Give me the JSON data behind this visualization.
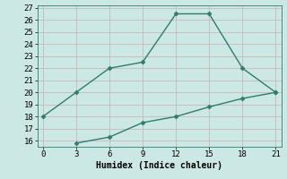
{
  "line1_x": [
    0,
    3,
    6,
    9,
    12,
    15,
    18,
    21
  ],
  "line1_y": [
    18,
    20,
    22,
    22.5,
    26.5,
    26.5,
    22,
    20
  ],
  "line2_x": [
    3,
    6,
    9,
    12,
    15,
    18,
    21
  ],
  "line2_y": [
    15.8,
    16.3,
    17.5,
    18,
    18.8,
    19.5,
    20
  ],
  "line_color": "#2e7d6e",
  "bg_color": "#cce8e4",
  "grid_color": "#c8b8b8",
  "xlabel": "Humidex (Indice chaleur)",
  "xlim": [
    -0.5,
    21.5
  ],
  "ylim": [
    15.5,
    27.2
  ],
  "xticks": [
    0,
    3,
    6,
    9,
    12,
    15,
    18,
    21
  ],
  "yticks": [
    16,
    17,
    18,
    19,
    20,
    21,
    22,
    23,
    24,
    25,
    26,
    27
  ],
  "marker": "D",
  "marker_size": 2.5,
  "line_width": 1.0,
  "xlabel_fontsize": 7,
  "tick_fontsize": 6.5
}
